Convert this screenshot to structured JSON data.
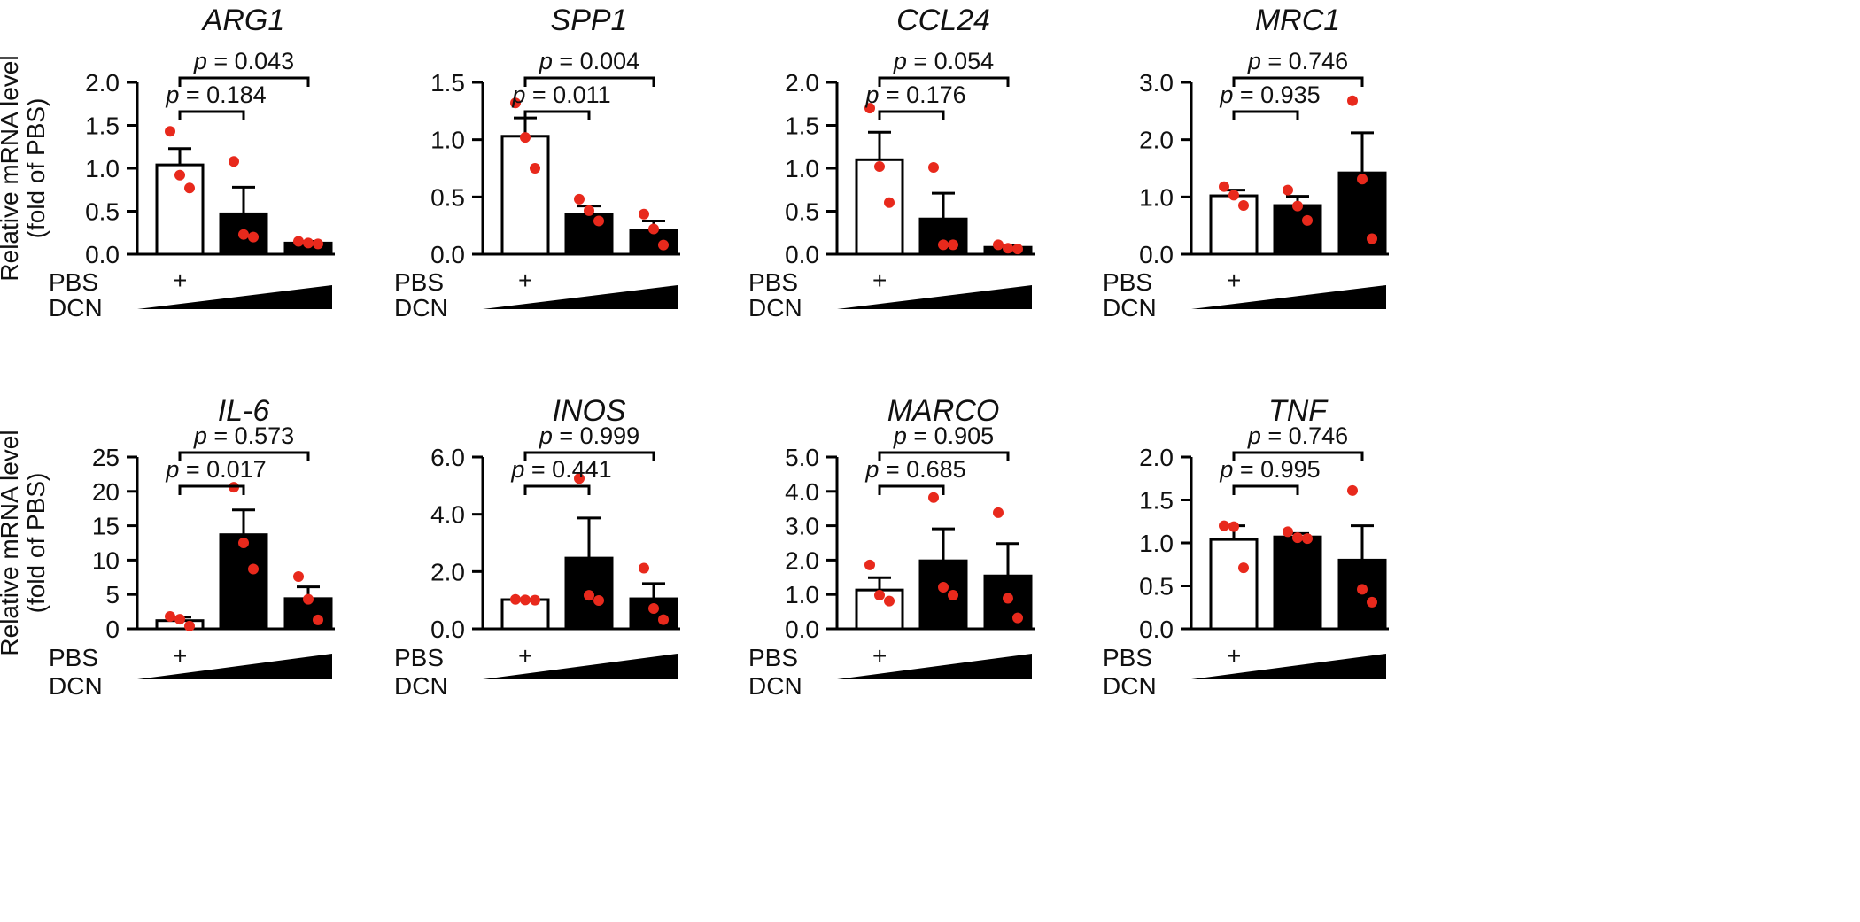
{
  "y_label_lines": [
    "Relative mRNA level",
    "(fold of PBS)"
  ],
  "group_labels": {
    "pbs": "PBS",
    "dcn": "DCN",
    "pbs_marker": "+"
  },
  "colors": {
    "bar_fill_control": "#ffffff",
    "bar_fill_treated": "#000000",
    "point": "#e8291c",
    "line": "#000000"
  },
  "chart_data": [
    {
      "type": "bar",
      "title": "ARG1",
      "ylabel": "Relative mRNA level (fold of PBS)",
      "ylim": [
        0,
        2.0
      ],
      "ticks": [
        "0.0",
        "0.5",
        "1.0",
        "1.5",
        "2.0"
      ],
      "categories": [
        "PBS",
        "DCN low",
        "DCN high"
      ],
      "values": [
        1.04,
        0.47,
        0.13
      ],
      "sem": [
        0.19,
        0.31,
        0.02
      ],
      "points": [
        [
          1.43,
          0.92,
          0.77
        ],
        [
          1.08,
          0.23,
          0.2
        ],
        [
          0.15,
          0.13,
          0.12
        ]
      ],
      "comparisons": [
        {
          "from": 0,
          "to": 2,
          "p": "0.043"
        },
        {
          "from": 0,
          "to": 1,
          "p": "0.184"
        }
      ]
    },
    {
      "type": "bar",
      "title": "SPP1",
      "ylabel": "Relative mRNA level (fold of PBS)",
      "ylim": [
        0,
        1.5
      ],
      "ticks": [
        "0.0",
        "0.5",
        "1.0",
        "1.5"
      ],
      "categories": [
        "PBS",
        "DCN low",
        "DCN high"
      ],
      "values": [
        1.03,
        0.35,
        0.21
      ],
      "sem": [
        0.16,
        0.07,
        0.08
      ],
      "points": [
        [
          1.32,
          1.02,
          0.75
        ],
        [
          0.48,
          0.38,
          0.29
        ],
        [
          0.35,
          0.22,
          0.08
        ]
      ],
      "comparisons": [
        {
          "from": 0,
          "to": 2,
          "p": "0.004"
        },
        {
          "from": 0,
          "to": 1,
          "p": "0.011"
        }
      ]
    },
    {
      "type": "bar",
      "title": "CCL24",
      "ylabel": "Relative mRNA level (fold of PBS)",
      "ylim": [
        0,
        2.0
      ],
      "ticks": [
        "0.0",
        "0.5",
        "1.0",
        "1.5",
        "2.0"
      ],
      "categories": [
        "PBS",
        "DCN low",
        "DCN high"
      ],
      "values": [
        1.1,
        0.41,
        0.08
      ],
      "sem": [
        0.32,
        0.3,
        0.02
      ],
      "points": [
        [
          1.7,
          1.02,
          0.6
        ],
        [
          1.01,
          0.11,
          0.11
        ],
        [
          0.11,
          0.07,
          0.06
        ]
      ],
      "comparisons": [
        {
          "from": 0,
          "to": 2,
          "p": "0.054"
        },
        {
          "from": 0,
          "to": 1,
          "p": "0.176"
        }
      ]
    },
    {
      "type": "bar",
      "title": "MRC1",
      "ylabel": "Relative mRNA level (fold of PBS)",
      "ylim": [
        0,
        3.0
      ],
      "ticks": [
        "0.0",
        "1.0",
        "2.0",
        "3.0"
      ],
      "categories": [
        "PBS",
        "DCN low",
        "DCN high"
      ],
      "values": [
        1.02,
        0.85,
        1.42
      ],
      "sem": [
        0.1,
        0.16,
        0.7
      ],
      "points": [
        [
          1.18,
          1.03,
          0.85
        ],
        [
          1.12,
          0.84,
          0.59
        ],
        [
          2.68,
          1.31,
          0.27
        ]
      ],
      "comparisons": [
        {
          "from": 0,
          "to": 2,
          "p": "0.746"
        },
        {
          "from": 0,
          "to": 1,
          "p": "0.935"
        }
      ]
    },
    {
      "type": "bar",
      "title": "IL-6",
      "ylabel": "Relative mRNA level (fold of PBS)",
      "ylim": [
        0,
        25
      ],
      "ticks": [
        "0",
        "5",
        "10",
        "15",
        "20",
        "25"
      ],
      "categories": [
        "PBS",
        "DCN low",
        "DCN high"
      ],
      "values": [
        1.2,
        13.7,
        4.4
      ],
      "sem": [
        0.5,
        3.6,
        1.7
      ],
      "points": [
        [
          1.8,
          1.4,
          0.4
        ],
        [
          20.6,
          12.5,
          8.7
        ],
        [
          7.6,
          4.3,
          1.3
        ]
      ],
      "comparisons": [
        {
          "from": 0,
          "to": 2,
          "p": "0.573"
        },
        {
          "from": 0,
          "to": 1,
          "p": "0.017"
        }
      ]
    },
    {
      "type": "bar",
      "title": "INOS",
      "ylabel": "Relative mRNA level (fold of PBS)",
      "ylim": [
        0,
        6.0
      ],
      "ticks": [
        "0.0",
        "2.0",
        "4.0",
        "6.0"
      ],
      "categories": [
        "PBS",
        "DCN low",
        "DCN high"
      ],
      "values": [
        1.02,
        2.47,
        1.05
      ],
      "sem": [
        0.02,
        1.4,
        0.53
      ],
      "points": [
        [
          1.03,
          1.01,
          1.0
        ],
        [
          5.25,
          1.17,
          0.99
        ],
        [
          2.12,
          0.71,
          0.32
        ]
      ],
      "comparisons": [
        {
          "from": 0,
          "to": 2,
          "p": "0.999"
        },
        {
          "from": 0,
          "to": 1,
          "p": "0.441"
        }
      ]
    },
    {
      "type": "bar",
      "title": "MARCO",
      "ylabel": "Relative mRNA level (fold of PBS)",
      "ylim": [
        0,
        5.0
      ],
      "ticks": [
        "0.0",
        "1.0",
        "2.0",
        "3.0",
        "4.0",
        "5.0"
      ],
      "categories": [
        "PBS",
        "DCN low",
        "DCN high"
      ],
      "values": [
        1.13,
        1.98,
        1.54
      ],
      "sem": [
        0.36,
        0.93,
        0.94
      ],
      "points": [
        [
          1.86,
          0.98,
          0.81
        ],
        [
          3.82,
          1.21,
          0.98
        ],
        [
          3.38,
          0.89,
          0.32
        ]
      ],
      "comparisons": [
        {
          "from": 0,
          "to": 2,
          "p": "0.905"
        },
        {
          "from": 0,
          "to": 1,
          "p": "0.685"
        }
      ]
    },
    {
      "type": "bar",
      "title": "TNF",
      "ylabel": "Relative mRNA level (fold of PBS)",
      "ylim": [
        0,
        2.0
      ],
      "ticks": [
        "0.0",
        "0.5",
        "1.0",
        "1.5",
        "2.0"
      ],
      "categories": [
        "PBS",
        "DCN low",
        "DCN high"
      ],
      "values": [
        1.04,
        1.07,
        0.8
      ],
      "sem": [
        0.16,
        0.04,
        0.4
      ],
      "points": [
        [
          1.2,
          1.19,
          0.71
        ],
        [
          1.13,
          1.06,
          1.05
        ],
        [
          1.61,
          0.46,
          0.31
        ]
      ],
      "comparisons": [
        {
          "from": 0,
          "to": 2,
          "p": "0.746"
        },
        {
          "from": 0,
          "to": 1,
          "p": "0.995"
        }
      ]
    }
  ]
}
